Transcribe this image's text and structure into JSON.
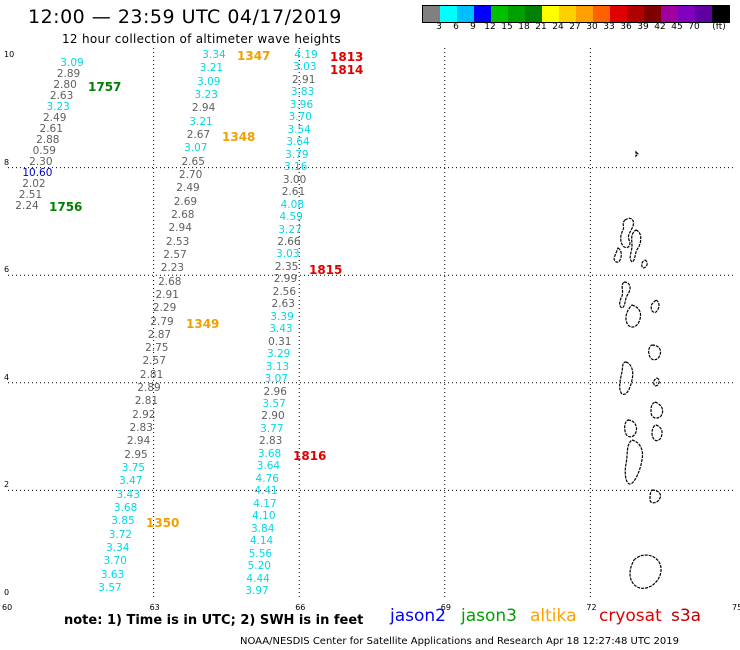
{
  "header": {
    "title": "12:00 — 23:59 UTC 04/17/2019",
    "subtitle": "12 hour collection of altimeter wave heights"
  },
  "legend": {
    "colors": [
      "#808080",
      "#00ffff",
      "#00bfff",
      "#0000ff",
      "#00c000",
      "#00a000",
      "#008000",
      "#ffff00",
      "#ffd000",
      "#ffa000",
      "#ff6000",
      "#e00000",
      "#b00000",
      "#800000",
      "#a000a0",
      "#8000c0",
      "#6000a0",
      "#000000"
    ],
    "ticks": [
      "3",
      "6",
      "9",
      "12",
      "15",
      "18",
      "21",
      "24",
      "27",
      "30",
      "33",
      "36",
      "39",
      "42",
      "45",
      "70",
      "(ft)"
    ]
  },
  "axes": {
    "x_ticks": [
      "60",
      "63",
      "66",
      "69",
      "72",
      "75"
    ],
    "y_ticks": [
      "0",
      "2",
      "4",
      "6",
      "8",
      "10"
    ]
  },
  "tracks": [
    {
      "name": "track-left",
      "points": [
        {
          "v": "3.09",
          "c": "cyan"
        },
        {
          "v": "2.89",
          "c": "gray"
        },
        {
          "v": "2.80",
          "c": "gray"
        },
        {
          "v": "2.63",
          "c": "gray"
        },
        {
          "v": "3.23",
          "c": "cyan"
        },
        {
          "v": "2.49",
          "c": "gray"
        },
        {
          "v": "2.61",
          "c": "gray"
        },
        {
          "v": "2.88",
          "c": "gray"
        },
        {
          "v": "0.59",
          "c": "gray"
        },
        {
          "v": "2.30",
          "c": "gray"
        },
        {
          "v": "10.60",
          "c": "blue"
        },
        {
          "v": "2.02",
          "c": "gray"
        },
        {
          "v": "2.51",
          "c": "gray"
        },
        {
          "v": "2.24",
          "c": "gray"
        }
      ]
    },
    {
      "name": "track-mid",
      "points": [
        {
          "v": "3.34",
          "c": "cyan"
        },
        {
          "v": "3.21",
          "c": "cyan"
        },
        {
          "v": "3.09",
          "c": "cyan"
        },
        {
          "v": "3.23",
          "c": "cyan"
        },
        {
          "v": "2.94",
          "c": "gray"
        },
        {
          "v": "3.21",
          "c": "cyan"
        },
        {
          "v": "2.67",
          "c": "gray"
        },
        {
          "v": "3.07",
          "c": "cyan"
        },
        {
          "v": "2.65",
          "c": "gray"
        },
        {
          "v": "2.70",
          "c": "gray"
        },
        {
          "v": "2.49",
          "c": "gray"
        },
        {
          "v": "2.69",
          "c": "gray"
        },
        {
          "v": "2.68",
          "c": "gray"
        },
        {
          "v": "2.94",
          "c": "gray"
        },
        {
          "v": "2.53",
          "c": "gray"
        },
        {
          "v": "2.57",
          "c": "gray"
        },
        {
          "v": "2.23",
          "c": "gray"
        },
        {
          "v": "2.68",
          "c": "gray"
        },
        {
          "v": "2.91",
          "c": "gray"
        },
        {
          "v": "2.29",
          "c": "gray"
        },
        {
          "v": "2.79",
          "c": "gray"
        },
        {
          "v": "2.87",
          "c": "gray"
        },
        {
          "v": "2.75",
          "c": "gray"
        },
        {
          "v": "2.57",
          "c": "gray"
        },
        {
          "v": "2.81",
          "c": "gray"
        },
        {
          "v": "2.89",
          "c": "gray"
        },
        {
          "v": "2.81",
          "c": "gray"
        },
        {
          "v": "2.92",
          "c": "gray"
        },
        {
          "v": "2.83",
          "c": "gray"
        },
        {
          "v": "2.94",
          "c": "gray"
        },
        {
          "v": "2.95",
          "c": "gray"
        },
        {
          "v": "3.75",
          "c": "cyan"
        },
        {
          "v": "3.47",
          "c": "cyan"
        },
        {
          "v": "3.43",
          "c": "cyan"
        },
        {
          "v": "3.68",
          "c": "cyan"
        },
        {
          "v": "3.85",
          "c": "cyan"
        },
        {
          "v": "3.72",
          "c": "cyan"
        },
        {
          "v": "3.34",
          "c": "cyan"
        },
        {
          "v": "3.70",
          "c": "cyan"
        },
        {
          "v": "3.63",
          "c": "cyan"
        },
        {
          "v": "3.57",
          "c": "cyan"
        }
      ]
    },
    {
      "name": "track-right",
      "points": [
        {
          "v": "4.19",
          "c": "cyan"
        },
        {
          "v": "3.03",
          "c": "cyan"
        },
        {
          "v": "2.91",
          "c": "gray"
        },
        {
          "v": "3.83",
          "c": "cyan"
        },
        {
          "v": "3.96",
          "c": "cyan"
        },
        {
          "v": "3.70",
          "c": "cyan"
        },
        {
          "v": "3.54",
          "c": "cyan"
        },
        {
          "v": "3.64",
          "c": "cyan"
        },
        {
          "v": "3.79",
          "c": "cyan"
        },
        {
          "v": "3.16",
          "c": "cyan"
        },
        {
          "v": "3.00",
          "c": "gray"
        },
        {
          "v": "2.61",
          "c": "gray"
        },
        {
          "v": "4.08",
          "c": "cyan"
        },
        {
          "v": "4.59",
          "c": "cyan"
        },
        {
          "v": "3.27",
          "c": "cyan"
        },
        {
          "v": "2.66",
          "c": "gray"
        },
        {
          "v": "3.03",
          "c": "cyan"
        },
        {
          "v": "2.35",
          "c": "gray"
        },
        {
          "v": "2.99",
          "c": "gray"
        },
        {
          "v": "2.56",
          "c": "gray"
        },
        {
          "v": "2.63",
          "c": "gray"
        },
        {
          "v": "3.39",
          "c": "cyan"
        },
        {
          "v": "3.43",
          "c": "cyan"
        },
        {
          "v": "0.31",
          "c": "gray"
        },
        {
          "v": "3.29",
          "c": "cyan"
        },
        {
          "v": "3.13",
          "c": "cyan"
        },
        {
          "v": "3.07",
          "c": "cyan"
        },
        {
          "v": "2.96",
          "c": "gray"
        },
        {
          "v": "3.57",
          "c": "cyan"
        },
        {
          "v": "2.90",
          "c": "gray"
        },
        {
          "v": "3.77",
          "c": "cyan"
        },
        {
          "v": "2.83",
          "c": "gray"
        },
        {
          "v": "3.68",
          "c": "cyan"
        },
        {
          "v": "3.64",
          "c": "cyan"
        },
        {
          "v": "4.76",
          "c": "cyan"
        },
        {
          "v": "4.41",
          "c": "cyan"
        },
        {
          "v": "4.17",
          "c": "cyan"
        },
        {
          "v": "4.10",
          "c": "cyan"
        },
        {
          "v": "3.84",
          "c": "cyan"
        },
        {
          "v": "4.14",
          "c": "cyan"
        },
        {
          "v": "5.56",
          "c": "cyan"
        },
        {
          "v": "5.20",
          "c": "cyan"
        },
        {
          "v": "4.44",
          "c": "cyan"
        },
        {
          "v": "3.97",
          "c": "cyan"
        }
      ]
    }
  ],
  "time_labels": [
    {
      "t": "1757",
      "c": "green"
    },
    {
      "t": "1756",
      "c": "green"
    },
    {
      "t": "1347",
      "c": "orange"
    },
    {
      "t": "1348",
      "c": "orange"
    },
    {
      "t": "1349",
      "c": "orange"
    },
    {
      "t": "1350",
      "c": "orange"
    },
    {
      "t": "1813",
      "c": "red"
    },
    {
      "t": "1814",
      "c": "red"
    },
    {
      "t": "1815",
      "c": "red"
    },
    {
      "t": "1816",
      "c": "red"
    }
  ],
  "colors": {
    "cyan": "#00d8e8",
    "gray": "#606060",
    "blue": "#0000c0",
    "green": "#008000",
    "orange": "#f0a000",
    "red": "#e00000",
    "darkred": "#c00000"
  },
  "note": "note: 1) Time is in UTC; 2) SWH is in feet",
  "satellites": [
    {
      "name": "jason2",
      "color": "#0000ff"
    },
    {
      "name": "jason3",
      "color": "#00a000"
    },
    {
      "name": "altika",
      "color": "#ffa000"
    },
    {
      "name": "cryosat",
      "color": "#e00000"
    },
    {
      "name": "s3a",
      "color": "#c00000"
    }
  ],
  "footer": "NOAA/NESDIS Center for Satellite Applications and Research   Apr 18 12:27:48 UTC 2019"
}
